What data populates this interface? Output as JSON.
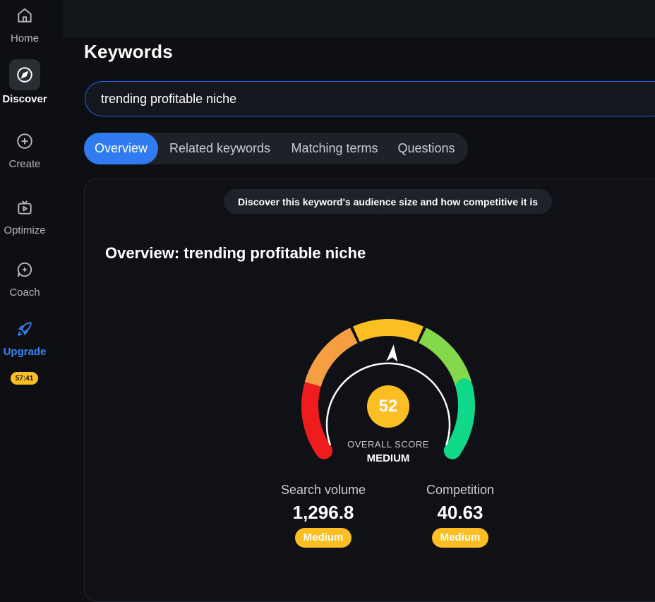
{
  "sidebar": {
    "items": [
      {
        "label": "Home",
        "icon": "home-icon"
      },
      {
        "label": "Discover",
        "icon": "compass-icon"
      },
      {
        "label": "Create",
        "icon": "plus-circle-icon"
      },
      {
        "label": "Optimize",
        "icon": "video-tv-icon"
      },
      {
        "label": "Coach",
        "icon": "chat-sparkle-icon"
      },
      {
        "label": "Upgrade",
        "icon": "rocket-icon"
      }
    ],
    "timer": "57:41"
  },
  "header": {
    "title": "Keywords"
  },
  "search": {
    "value": "trending profitable niche"
  },
  "tabs": [
    "Overview",
    "Related keywords",
    "Matching terms",
    "Questions"
  ],
  "info_text": "Discover this keyword's audience size and how competitive it is",
  "overview": {
    "title": "Overview: trending profitable niche",
    "score": "52",
    "score_label": "OVERALL SCORE",
    "score_level": "MEDIUM",
    "score_fraction": 0.52
  },
  "metrics": [
    {
      "label": "Search volume",
      "value": "1,296.8",
      "badge": "Medium"
    },
    {
      "label": "Competition",
      "value": "40.63",
      "badge": "Medium"
    }
  ],
  "colors": {
    "accent": "#2f7bef",
    "badge": "#fbbf24",
    "gauge": [
      "#ee1c1c",
      "#f59e42",
      "#fbbf24",
      "#84d94a",
      "#10d98a"
    ]
  }
}
